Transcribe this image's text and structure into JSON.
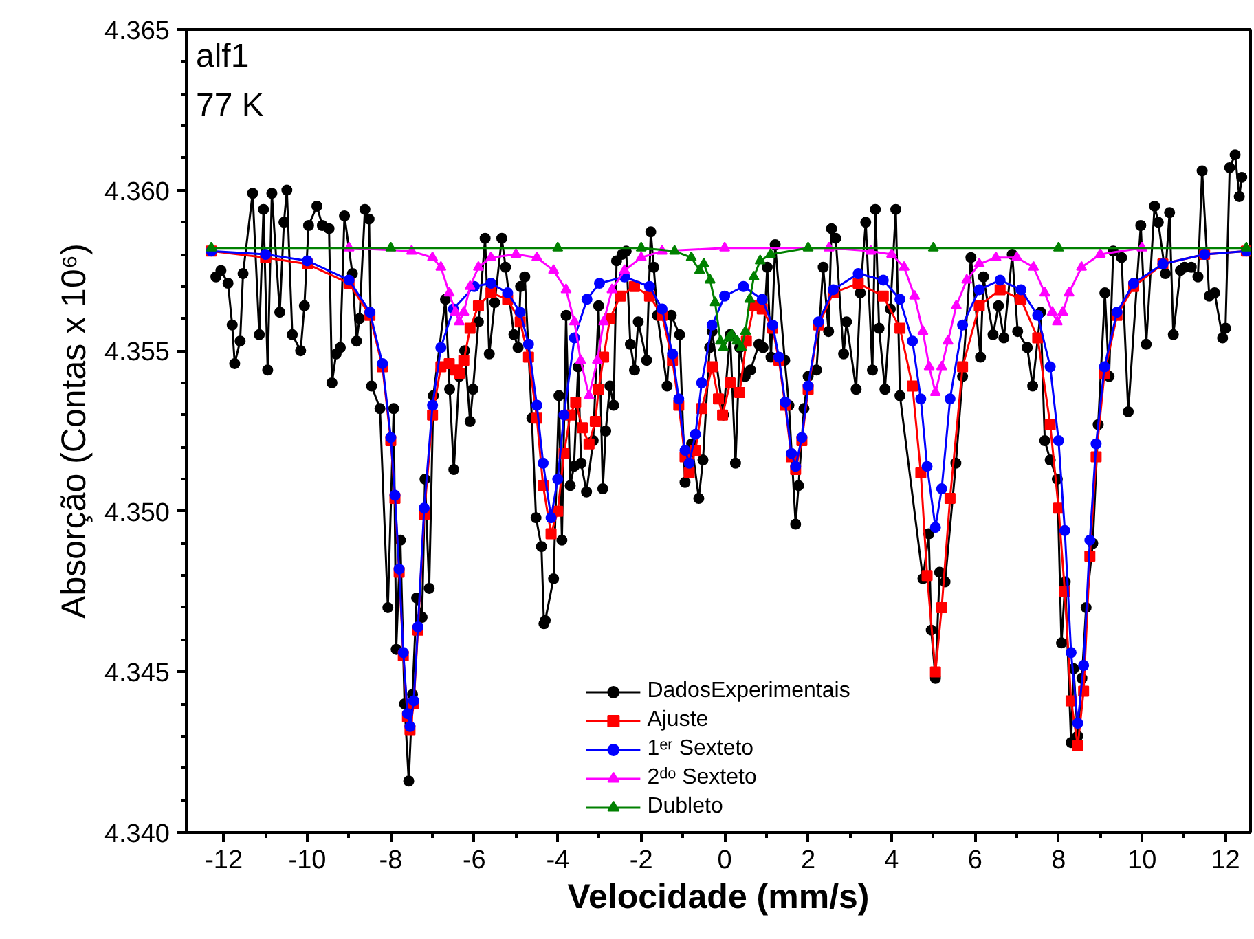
{
  "chart_data": {
    "type": "line",
    "xlabel": "Velocidade (mm/s)",
    "ylabel": "Absorção (Contas x 10⁶)",
    "annotations": [
      "alf1",
      "77 K"
    ],
    "xlim": [
      -12.9,
      12.6
    ],
    "ylim": [
      4.34,
      4.365
    ],
    "xticks": [
      -12,
      {
        "value": -11,
        "label": null
      },
      -10,
      {
        "value": -9,
        "label": null
      },
      -8,
      {
        "value": -7,
        "label": null
      },
      -6,
      {
        "value": -5,
        "label": null
      },
      -4,
      {
        "value": -3,
        "label": null
      },
      -2,
      {
        "value": -1,
        "label": null
      },
      0,
      {
        "value": 1,
        "label": null
      },
      2,
      {
        "value": 3,
        "label": null
      },
      4,
      {
        "value": 5,
        "label": null
      },
      6,
      {
        "value": 7,
        "label": null
      },
      8,
      {
        "value": 9,
        "label": null
      },
      10,
      {
        "value": 11,
        "label": null
      },
      12
    ],
    "yticks": [
      {
        "value": 4.34,
        "label": "4.340"
      },
      {
        "value": 4.341,
        "label": null
      },
      {
        "value": 4.342,
        "label": null
      },
      {
        "value": 4.343,
        "label": null
      },
      {
        "value": 4.344,
        "label": null
      },
      4.345,
      {
        "value": 4.346,
        "label": null
      },
      {
        "value": 4.347,
        "label": null
      },
      {
        "value": 4.348,
        "label": null
      },
      {
        "value": 4.349,
        "label": null
      },
      {
        "value": 4.35,
        "label": "4.350"
      },
      {
        "value": 4.351,
        "label": null
      },
      {
        "value": 4.352,
        "label": null
      },
      {
        "value": 4.353,
        "label": null
      },
      {
        "value": 4.354,
        "label": null
      },
      4.355,
      {
        "value": 4.356,
        "label": null
      },
      {
        "value": 4.357,
        "label": null
      },
      {
        "value": 4.358,
        "label": null
      },
      {
        "value": 4.359,
        "label": null
      },
      {
        "value": 4.36,
        "label": "4.360"
      },
      {
        "value": 4.361,
        "label": null
      },
      {
        "value": 4.362,
        "label": null
      },
      {
        "value": 4.363,
        "label": null
      },
      {
        "value": 4.364,
        "label": null
      },
      4.365
    ],
    "grid": false,
    "legend": "bottom",
    "series": [
      {
        "name": "DadosExperimentais",
        "color": "#000000",
        "marker": "circle",
        "x": [
          -12.19,
          -12.07,
          -11.9,
          -11.8,
          -11.74,
          -11.61,
          -11.54,
          -11.31,
          -11.15,
          -11.05,
          -10.95,
          -10.85,
          -10.66,
          -10.56,
          -10.49,
          -10.36,
          -10.16,
          -10.07,
          -9.97,
          -9.77,
          -9.64,
          -9.48,
          -9.41,
          -9.31,
          -9.21,
          -9.11,
          -8.92,
          -8.82,
          -8.75,
          -8.62,
          -8.52,
          -8.46,
          -8.26,
          -8.07,
          -7.93,
          -7.87,
          -7.77,
          -7.67,
          -7.57,
          -7.48,
          -7.38,
          -7.25,
          -7.18,
          -7.08,
          -6.98,
          -6.69,
          -6.59,
          -6.49,
          -6.36,
          -6.23,
          -6.1,
          -6.03,
          -5.9,
          -5.74,
          -5.64,
          -5.51,
          -5.34,
          -5.25,
          -5.05,
          -4.95,
          -4.89,
          -4.79,
          -4.62,
          -4.52,
          -4.39,
          -4.33,
          -4.3,
          -4.1,
          -3.97,
          -3.9,
          -3.8,
          -3.7,
          -3.61,
          -3.51,
          -3.44,
          -3.31,
          -3.15,
          -3.02,
          -2.92,
          -2.85,
          -2.75,
          -2.66,
          -2.59,
          -2.46,
          -2.36,
          -2.26,
          -2.16,
          -2.07,
          -1.87,
          -1.77,
          -1.7,
          -1.61,
          -1.38,
          -1.28,
          -1.08,
          -0.95,
          -0.79,
          -0.62,
          -0.52,
          -0.36,
          -0.3,
          -0.03,
          0.13,
          0.26,
          0.36,
          0.49,
          0.62,
          0.82,
          0.92,
          1.02,
          1.11,
          1.21,
          1.44,
          1.54,
          1.7,
          1.77,
          1.9,
          2.0,
          2.2,
          2.36,
          2.49,
          2.56,
          2.66,
          2.85,
          2.92,
          3.15,
          3.25,
          3.38,
          3.54,
          3.61,
          3.7,
          3.84,
          3.97,
          4.1,
          4.2,
          4.75,
          4.89,
          4.95,
          5.05,
          5.15,
          5.28,
          5.54,
          5.7,
          5.9,
          6.13,
          6.2,
          6.43,
          6.56,
          6.69,
          6.89,
          7.02,
          7.25,
          7.38,
          7.57,
          7.67,
          7.8,
          7.97,
          8.07,
          8.16,
          8.3,
          8.36,
          8.46,
          8.56,
          8.66,
          8.82,
          8.95,
          9.11,
          9.21,
          9.31,
          9.51,
          9.67,
          9.97,
          10.1,
          10.3,
          10.39,
          10.56,
          10.66,
          10.75,
          10.92,
          11.02,
          11.18,
          11.34,
          11.44,
          11.61,
          11.74,
          11.93,
          12.0,
          12.1,
          12.23,
          12.33,
          12.39
        ],
        "values": [
          4.3573,
          4.3575,
          4.3571,
          4.3558,
          4.3546,
          4.3553,
          4.3574,
          4.3599,
          4.3555,
          4.3594,
          4.3544,
          4.3599,
          4.3562,
          4.359,
          4.36,
          4.3555,
          4.355,
          4.3564,
          4.3589,
          4.3595,
          4.3589,
          4.3588,
          4.354,
          4.3549,
          4.3551,
          4.3592,
          4.3574,
          4.3553,
          4.356,
          4.3594,
          4.3591,
          4.3539,
          4.3532,
          4.347,
          4.3532,
          4.3457,
          4.3491,
          4.344,
          4.3416,
          4.3443,
          4.3473,
          4.3467,
          4.351,
          4.3476,
          4.3536,
          4.3566,
          4.3538,
          4.3513,
          4.3542,
          4.355,
          4.3528,
          4.3538,
          4.3559,
          4.3585,
          4.3549,
          4.3565,
          4.3585,
          4.3576,
          4.3555,
          4.3551,
          4.357,
          4.3573,
          4.3529,
          4.3498,
          4.3489,
          4.3465,
          4.3466,
          4.3479,
          4.3536,
          4.3491,
          4.3561,
          4.3508,
          4.3514,
          4.3545,
          4.3515,
          4.3506,
          4.3522,
          4.3564,
          4.3507,
          4.3525,
          4.3539,
          4.3533,
          4.3578,
          4.358,
          4.3581,
          4.3552,
          4.3544,
          4.3559,
          4.3547,
          4.3587,
          4.3576,
          4.3561,
          4.3539,
          4.3561,
          4.3555,
          4.3509,
          4.3521,
          4.3504,
          4.3516,
          4.3551,
          4.3556,
          4.353,
          4.3555,
          4.3515,
          4.3551,
          4.3542,
          4.3544,
          4.3552,
          4.3551,
          4.3576,
          4.3548,
          4.3583,
          4.3547,
          4.3533,
          4.3496,
          4.3508,
          4.3532,
          4.3542,
          4.3544,
          4.3576,
          4.3556,
          4.3588,
          4.3585,
          4.3549,
          4.3559,
          4.3538,
          4.3568,
          4.359,
          4.3544,
          4.3594,
          4.3557,
          4.3538,
          4.3563,
          4.3594,
          4.3536,
          4.3479,
          4.3493,
          4.3463,
          4.3448,
          4.3481,
          4.3478,
          4.3515,
          4.3542,
          4.3579,
          4.3548,
          4.3573,
          4.3555,
          4.3564,
          4.3554,
          4.358,
          4.3556,
          4.3551,
          4.3539,
          4.3562,
          4.3522,
          4.3516,
          4.351,
          4.3459,
          4.3478,
          4.3428,
          4.3451,
          4.343,
          4.3448,
          4.347,
          4.349,
          4.3527,
          4.3568,
          4.3542,
          4.3581,
          4.3579,
          4.3531,
          4.3589,
          4.3552,
          4.3595,
          4.359,
          4.3574,
          4.3593,
          4.3555,
          4.3575,
          4.3576,
          4.3576,
          4.3573,
          4.3606,
          4.3567,
          4.3568,
          4.3554,
          4.3557,
          4.3607,
          4.3611,
          4.3598,
          4.3604
        ]
      },
      {
        "name": "Ajuste",
        "color": "#ff0000",
        "marker": "square",
        "x": [
          -12.3,
          -11,
          -10,
          -9,
          -8.5,
          -8.2,
          -8.0,
          -7.9,
          -7.8,
          -7.7,
          -7.6,
          -7.54,
          -7.45,
          -7.35,
          -7.2,
          -7.0,
          -6.8,
          -6.6,
          -6.45,
          -6.36,
          -6.25,
          -6.1,
          -5.9,
          -5.6,
          -5.2,
          -4.9,
          -4.7,
          -4.5,
          -4.35,
          -4.16,
          -4.0,
          -3.85,
          -3.7,
          -3.57,
          -3.41,
          -3.25,
          -3.1,
          -3.02,
          -2.9,
          -2.75,
          -2.5,
          -2.16,
          -1.8,
          -1.5,
          -1.25,
          -1.1,
          -0.95,
          -0.85,
          -0.7,
          -0.55,
          -0.3,
          -0.15,
          -0.05,
          0.13,
          0.36,
          0.52,
          0.7,
          0.9,
          1.15,
          1.3,
          1.45,
          1.6,
          1.7,
          1.85,
          2.0,
          2.25,
          2.6,
          3.2,
          3.8,
          4.2,
          4.5,
          4.7,
          4.85,
          5.05,
          5.2,
          5.4,
          5.7,
          6.1,
          6.6,
          7.1,
          7.5,
          7.8,
          8.0,
          8.15,
          8.3,
          8.46,
          8.6,
          8.75,
          8.9,
          9.1,
          9.4,
          9.8,
          10.5,
          11.5,
          12.5
        ],
        "values": [
          4.3581,
          4.3579,
          4.3577,
          4.3571,
          4.3561,
          4.3545,
          4.3522,
          4.3504,
          4.3481,
          4.3455,
          4.3436,
          4.3432,
          4.344,
          4.3463,
          4.3499,
          4.353,
          4.3545,
          4.3546,
          4.3544,
          4.3543,
          4.3547,
          4.3557,
          4.3564,
          4.3568,
          4.3566,
          4.3559,
          4.3548,
          4.3529,
          4.3508,
          4.3493,
          4.35,
          4.3518,
          4.353,
          4.3534,
          4.3526,
          4.3521,
          4.3528,
          4.3538,
          4.3548,
          4.356,
          4.3567,
          4.357,
          4.3567,
          4.3561,
          4.3547,
          4.3533,
          4.3517,
          4.3512,
          4.3519,
          4.3532,
          4.3545,
          4.3535,
          4.353,
          4.354,
          4.3537,
          4.3553,
          4.3564,
          4.3563,
          4.3557,
          4.3547,
          4.3533,
          4.3517,
          4.3513,
          4.3522,
          4.3538,
          4.3558,
          4.3568,
          4.3571,
          4.3567,
          4.3557,
          4.3539,
          4.3512,
          4.348,
          4.345,
          4.347,
          4.3504,
          4.3545,
          4.3564,
          4.3569,
          4.3566,
          4.3554,
          4.3527,
          4.3501,
          4.3475,
          4.3441,
          4.3427,
          4.3444,
          4.3486,
          4.3517,
          4.3543,
          4.3561,
          4.357,
          4.3577,
          4.358,
          4.3581
        ]
      },
      {
        "name": "1ᵉʳ Sexteto",
        "color": "#0000ff",
        "marker": "circle",
        "x": [
          -12.3,
          -11,
          -10,
          -9,
          -8.5,
          -8.2,
          -8.0,
          -7.9,
          -7.8,
          -7.7,
          -7.6,
          -7.54,
          -7.45,
          -7.35,
          -7.2,
          -7.0,
          -6.8,
          -6.5,
          -6.0,
          -5.6,
          -5.2,
          -4.9,
          -4.7,
          -4.5,
          -4.35,
          -4.16,
          -4.0,
          -3.85,
          -3.6,
          -3.3,
          -3.0,
          -2.4,
          -1.8,
          -1.5,
          -1.25,
          -1.1,
          -0.95,
          -0.85,
          -0.7,
          -0.55,
          -0.3,
          0,
          0.45,
          0.9,
          1.15,
          1.3,
          1.45,
          1.6,
          1.7,
          1.85,
          2.0,
          2.25,
          2.6,
          3.2,
          3.8,
          4.2,
          4.5,
          4.7,
          4.85,
          5.05,
          5.2,
          5.4,
          5.7,
          6.1,
          6.6,
          7.1,
          7.5,
          7.8,
          8.0,
          8.15,
          8.3,
          8.46,
          8.6,
          8.75,
          8.9,
          9.1,
          9.4,
          9.8,
          10.5,
          11.5,
          12.5
        ],
        "values": [
          4.3581,
          4.358,
          4.3578,
          4.3572,
          4.3562,
          4.3546,
          4.3523,
          4.3505,
          4.3482,
          4.3456,
          4.3437,
          4.3433,
          4.3441,
          4.3464,
          4.3501,
          4.3533,
          4.3551,
          4.3563,
          4.357,
          4.3571,
          4.3568,
          4.3562,
          4.3552,
          4.3533,
          4.3515,
          4.3498,
          4.351,
          4.353,
          4.3554,
          4.3566,
          4.3571,
          4.3573,
          4.357,
          4.3563,
          4.3549,
          4.3535,
          4.3519,
          4.3515,
          4.3524,
          4.354,
          4.3558,
          4.3567,
          4.357,
          4.3566,
          4.3558,
          4.3548,
          4.3534,
          4.3518,
          4.3514,
          4.3523,
          4.3539,
          4.3559,
          4.3569,
          4.3574,
          4.3572,
          4.3566,
          4.3553,
          4.3535,
          4.3514,
          4.3495,
          4.3507,
          4.3535,
          4.3558,
          4.3569,
          4.3572,
          4.3569,
          4.3561,
          4.3545,
          4.3522,
          4.3494,
          4.3456,
          4.3434,
          4.3452,
          4.3491,
          4.3521,
          4.3545,
          4.3562,
          4.3571,
          4.3577,
          4.358,
          4.3581
        ]
      },
      {
        "name": "2ᵈᵒ Sexteto",
        "color": "#ff00ff",
        "marker": "triangle",
        "x": [
          -9,
          -7.5,
          -7.0,
          -6.8,
          -6.6,
          -6.45,
          -6.36,
          -6.25,
          -6.1,
          -5.9,
          -5.6,
          -5.0,
          -4.5,
          -4.1,
          -3.8,
          -3.6,
          -3.45,
          -3.25,
          -3.05,
          -2.9,
          -2.7,
          -2.4,
          -2.0,
          -1.5,
          0,
          2.5,
          3.5,
          4.0,
          4.3,
          4.55,
          4.75,
          4.9,
          5.05,
          5.2,
          5.35,
          5.55,
          5.8,
          6.1,
          6.5,
          7.0,
          7.4,
          7.67,
          7.85,
          7.97,
          8.1,
          8.25,
          8.55,
          9.0,
          10
        ],
        "values": [
          4.3582,
          4.3581,
          4.3579,
          4.3576,
          4.3568,
          4.3562,
          4.3559,
          4.3562,
          4.357,
          4.3576,
          4.3579,
          4.358,
          4.3579,
          4.3575,
          4.3569,
          4.3559,
          4.3547,
          4.3536,
          4.3547,
          4.3559,
          4.3569,
          4.3575,
          4.3579,
          4.3581,
          4.3582,
          4.3582,
          4.3581,
          4.358,
          4.3576,
          4.3567,
          4.3556,
          4.3545,
          4.3537,
          4.3545,
          4.3553,
          4.3564,
          4.3572,
          4.3577,
          4.3579,
          4.3579,
          4.3576,
          4.3568,
          4.3562,
          4.3559,
          4.3562,
          4.3568,
          4.3576,
          4.358,
          4.3582
        ]
      },
      {
        "name": "Dubleto",
        "color": "#008000",
        "marker": "triangle",
        "x": [
          -12.3,
          -8,
          -4,
          -2,
          -1.2,
          -0.8,
          -0.6,
          -0.5,
          -0.35,
          -0.23,
          -0.1,
          -0.03,
          0.1,
          0.17,
          0.3,
          0.4,
          0.5,
          0.6,
          0.7,
          0.85,
          1.1,
          2,
          5,
          8,
          12.5
        ],
        "values": [
          4.3582,
          4.3582,
          4.3582,
          4.3582,
          4.3581,
          4.3579,
          4.3575,
          4.3577,
          4.3572,
          4.3565,
          4.3553,
          4.3551,
          4.3554,
          4.3555,
          4.3553,
          4.3551,
          4.3556,
          4.3566,
          4.3573,
          4.3578,
          4.358,
          4.3582,
          4.3582,
          4.3582,
          4.3582
        ]
      }
    ]
  }
}
